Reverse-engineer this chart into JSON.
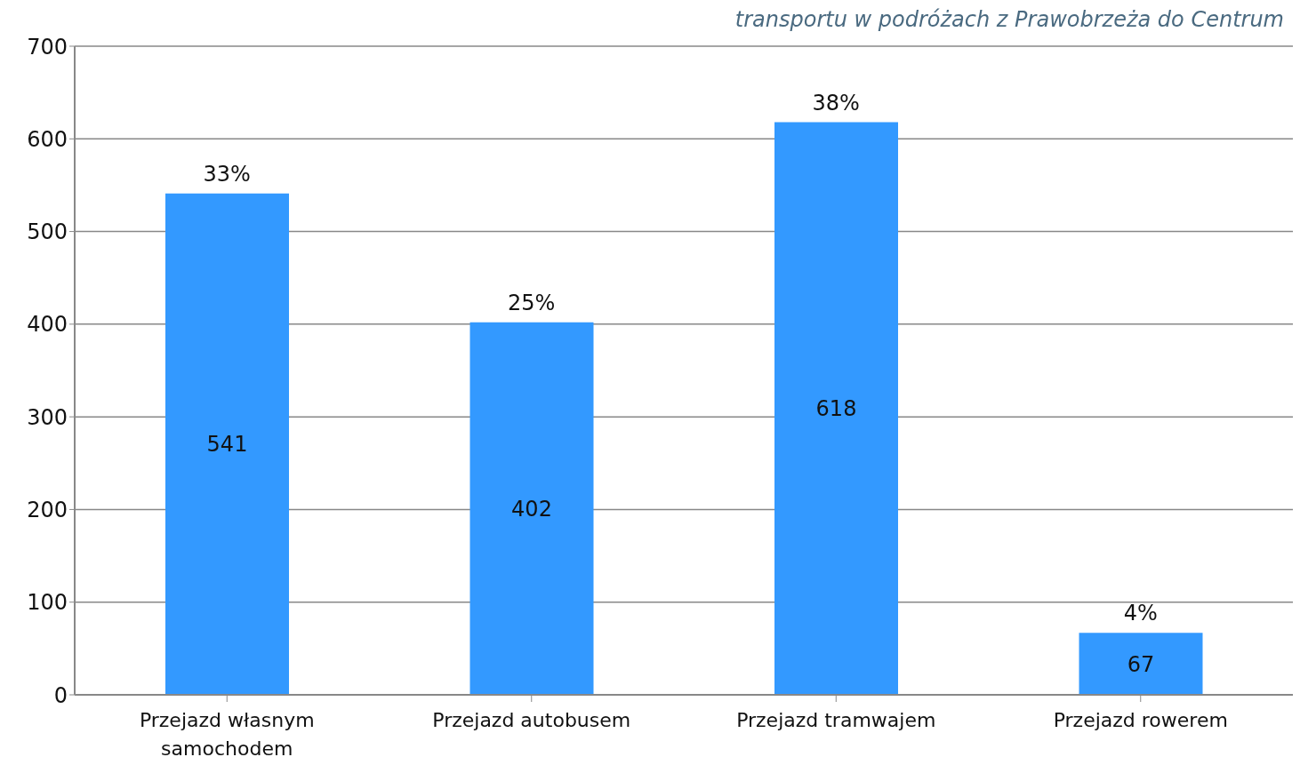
{
  "chart_data": {
    "type": "bar",
    "title": "transportu w podróżach z Prawobrzeża do Centrum",
    "categories": [
      "Przejazd własnym samochodem",
      "Przejazd autobusem",
      "Przejazd tramwajem",
      "Przejazd rowerem"
    ],
    "values": [
      541,
      402,
      618,
      67
    ],
    "color": "#3399ff",
    "ylim": [
      0,
      700
    ],
    "yticks": [
      0,
      100,
      200,
      300,
      400,
      500,
      600,
      700
    ],
    "grid": "y",
    "data_labels": true,
    "annotations": [
      {
        "text": "33%",
        "x": "Przejazd własnym samochodem",
        "y": 541
      },
      {
        "text": "25%",
        "x": "Przejazd autobusem",
        "y": 402
      },
      {
        "text": "38%",
        "x": "Przejazd tramwajem",
        "y": 618
      },
      {
        "text": "4%",
        "x": "Przejazd rowerem",
        "y": 67
      }
    ]
  }
}
